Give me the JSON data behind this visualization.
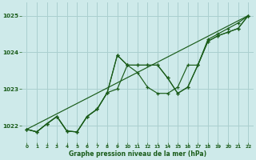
{
  "bg_color": "#ceeaea",
  "grid_color": "#aacfcf",
  "line_color": "#1a5c1a",
  "title": "Graphe pression niveau de la mer (hPa)",
  "xlim": [
    -0.5,
    22.5
  ],
  "ylim": [
    1021.55,
    1025.35
  ],
  "yticks": [
    1022,
    1023,
    1024,
    1025
  ],
  "xticks": [
    0,
    1,
    2,
    3,
    4,
    5,
    6,
    7,
    8,
    9,
    10,
    11,
    12,
    13,
    14,
    15,
    16,
    17,
    18,
    19,
    20,
    21,
    22
  ],
  "series": {
    "line1_x": [
      0,
      1,
      2,
      3,
      4,
      5,
      6,
      7,
      8,
      9,
      10,
      11,
      12,
      13,
      14,
      15,
      16,
      17,
      18,
      19,
      20,
      21,
      22
    ],
    "line1_y": [
      1021.9,
      1021.83,
      1022.05,
      1022.25,
      1021.85,
      1021.83,
      1022.25,
      1022.45,
      1022.9,
      1023.92,
      1023.65,
      1023.65,
      1023.65,
      1023.65,
      1023.3,
      1022.88,
      1023.05,
      1023.65,
      1024.3,
      1024.45,
      1024.55,
      1024.65,
      1025.0
    ],
    "line2_x": [
      0,
      1,
      2,
      3,
      4,
      5,
      6,
      7,
      8,
      9,
      10,
      11,
      12,
      13,
      14,
      15,
      16,
      17,
      18,
      19,
      20,
      21,
      22
    ],
    "line2_y": [
      1021.9,
      1021.83,
      1022.05,
      1022.25,
      1021.85,
      1021.83,
      1022.25,
      1022.45,
      1022.9,
      1023.0,
      1023.65,
      1023.65,
      1023.65,
      1023.65,
      1023.3,
      1022.88,
      1023.05,
      1023.65,
      1024.3,
      1024.45,
      1024.55,
      1024.65,
      1025.0
    ],
    "line3_x": [
      0,
      1,
      2,
      3,
      4,
      5,
      6,
      7,
      8,
      9,
      10,
      11,
      12,
      13,
      14,
      15,
      16,
      17,
      18,
      19,
      20,
      21,
      22
    ],
    "line3_y": [
      1021.9,
      1021.83,
      1022.05,
      1022.25,
      1021.85,
      1021.83,
      1022.25,
      1022.45,
      1022.9,
      1023.92,
      1023.65,
      1023.45,
      1023.05,
      1022.88,
      1022.88,
      1023.05,
      1023.65,
      1023.65,
      1024.35,
      1024.5,
      1024.65,
      1024.8,
      1025.0
    ],
    "line4_x": [
      0,
      22
    ],
    "line4_y": [
      1021.9,
      1025.0
    ]
  }
}
